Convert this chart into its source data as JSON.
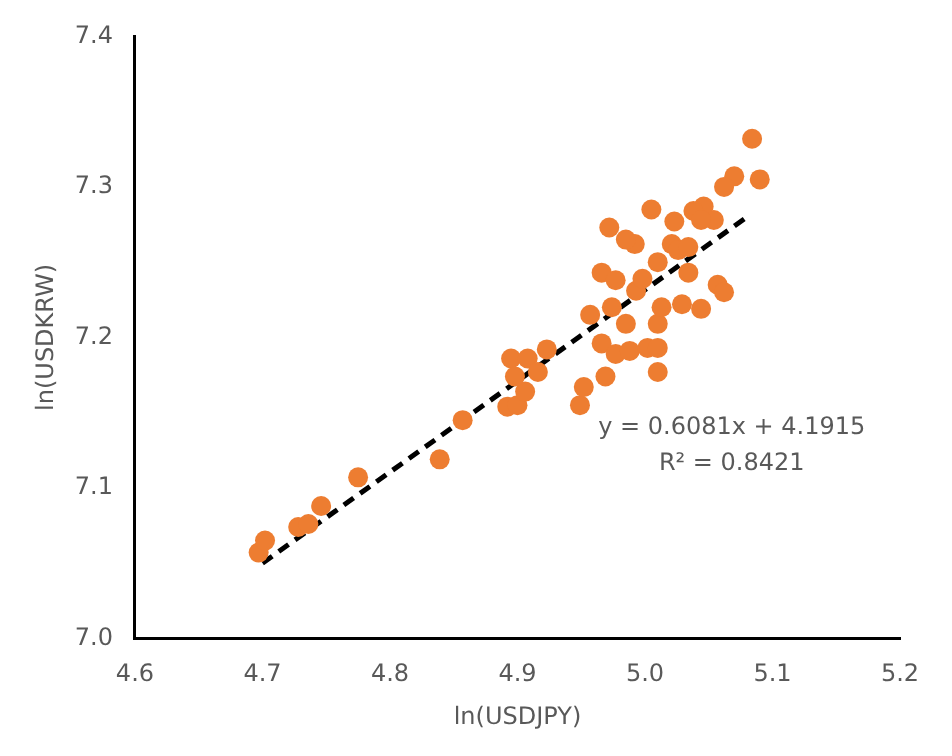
{
  "chart_data": {
    "type": "scatter",
    "xlabel": "ln(USDJPY)",
    "ylabel": "ln(USDKRW)",
    "xlim": [
      4.6,
      5.2
    ],
    "xticks": [
      4.6,
      4.7,
      4.8,
      4.9,
      {
        "value": 5,
        "label": "5.0"
      },
      5.1,
      5.2
    ],
    "ylim": [
      7.0,
      7.4
    ],
    "yticks": [
      {
        "value": 7,
        "label": "7.0"
      },
      7.1,
      7.2,
      7.3,
      7.4
    ],
    "grid": false,
    "legend": false,
    "marker": "circle",
    "annotations": [
      "y = 0.6081x + 4.1915",
      "R² = 0.8421"
    ],
    "series": [
      {
        "type": "scatter",
        "color": "#ed7d31",
        "x": [
          4.697,
          4.702,
          4.728,
          4.736,
          4.746,
          4.775,
          4.839,
          4.857,
          4.892,
          4.9,
          4.906,
          4.895,
          4.908,
          4.923,
          4.916,
          4.898,
          4.949,
          4.952,
          4.969,
          4.966,
          4.977,
          4.988,
          5.002,
          5.01,
          5.01,
          4.957,
          4.974,
          4.985,
          5.01,
          5.013,
          4.966,
          4.977,
          4.993,
          4.998,
          4.972,
          4.992,
          5.005,
          5.021,
          5.023,
          5.084,
          5.09,
          5.07,
          5.062,
          5.054,
          5.046,
          5.038,
          5.044,
          5.026,
          5.034,
          5.034,
          5.029,
          5.044,
          5.057,
          5.062,
          5.01,
          4.985
        ],
        "values": [
          7.057,
          7.065,
          7.074,
          7.076,
          7.088,
          7.107,
          7.119,
          7.145,
          7.154,
          7.155,
          7.164,
          7.186,
          7.186,
          7.192,
          7.177,
          7.174,
          7.155,
          7.167,
          7.174,
          7.196,
          7.189,
          7.191,
          7.193,
          7.193,
          7.177,
          7.215,
          7.22,
          7.209,
          7.209,
          7.22,
          7.243,
          7.238,
          7.231,
          7.239,
          7.273,
          7.262,
          7.285,
          7.262,
          7.277,
          7.332,
          7.305,
          7.307,
          7.3,
          7.278,
          7.287,
          7.284,
          7.278,
          7.258,
          7.26,
          7.243,
          7.222,
          7.219,
          7.235,
          7.23,
          7.25,
          7.265
        ]
      },
      {
        "type": "line",
        "color": "#000000",
        "line_style": "dashed",
        "marker": "none",
        "x": [
          4.7,
          5.08
        ],
        "values": [
          7.05,
          7.28
        ]
      }
    ]
  }
}
